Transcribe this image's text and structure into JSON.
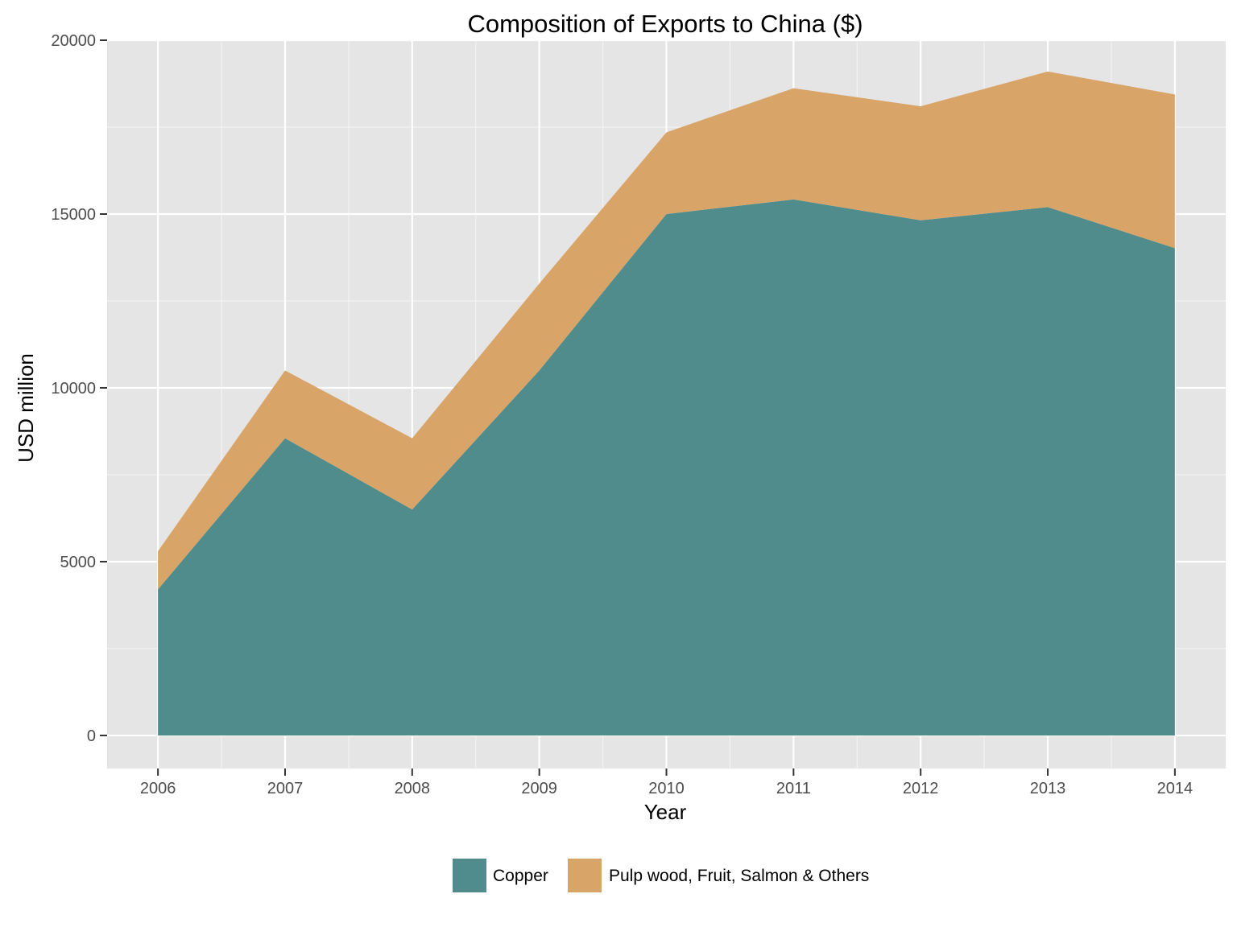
{
  "chart_data": {
    "type": "area",
    "stacked": true,
    "title": "Composition of Exports to China ($)",
    "xlabel": "Year",
    "ylabel": "USD million",
    "categories": [
      "2006",
      "2007",
      "2008",
      "2009",
      "2010",
      "2011",
      "2012",
      "2013",
      "2014"
    ],
    "x": [
      2006,
      2007,
      2008,
      2009,
      2010,
      2011,
      2012,
      2013,
      2014
    ],
    "series": [
      {
        "name": "Copper",
        "color": "#518c8c",
        "values": [
          4200,
          8550,
          6500,
          10500,
          15000,
          15420,
          14820,
          15200,
          14020
        ]
      },
      {
        "name": "Pulp wood, Fruit, Salmon & Others",
        "color": "#d9a467",
        "values": [
          1100,
          1950,
          2050,
          2500,
          2350,
          3200,
          3280,
          3900,
          4420
        ]
      }
    ],
    "ylim": [
      -950,
      20000
    ],
    "yticks": [
      0,
      5000,
      10000,
      15000,
      20000
    ],
    "yticklabels": [
      "0",
      "5000",
      "10000",
      "15000",
      "20000"
    ],
    "xlim": [
      2005.6,
      2014.4
    ],
    "grid": true,
    "background": "#e5e5e5",
    "legend_position": "bottom"
  }
}
